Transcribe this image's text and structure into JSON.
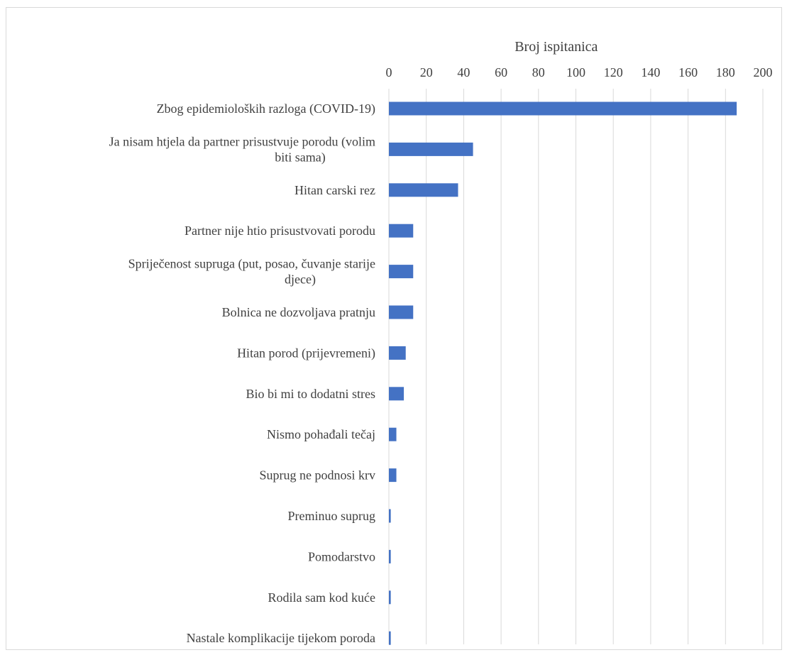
{
  "chart_data": {
    "type": "bar",
    "orientation": "horizontal",
    "title": "",
    "xlabel": "Broj ispitanica",
    "ylabel": "",
    "xlim": [
      0,
      200
    ],
    "xticks": [
      0,
      20,
      40,
      60,
      80,
      100,
      120,
      140,
      160,
      180,
      200
    ],
    "x_axis_position": "top",
    "grid": "vertical",
    "legend": "none",
    "bar_color": "#4472c4",
    "grid_color": "#d9d9d9",
    "categories": [
      [
        "Zbog epidemioloških razloga (COVID-19)"
      ],
      [
        "Ja nisam htjela da partner prisustvuje porodu (volim",
        "biti sama)"
      ],
      [
        "Hitan carski rez"
      ],
      [
        "Partner nije htio prisustvovati porodu"
      ],
      [
        "Spriječenost supruga (put, posao, čuvanje starije",
        "djece)"
      ],
      [
        "Bolnica ne dozvoljava pratnju"
      ],
      [
        "Hitan porod (prijevremeni)"
      ],
      [
        "Bio bi mi to dodatni stres"
      ],
      [
        "Nismo pohađali tečaj"
      ],
      [
        "Suprug ne podnosi krv"
      ],
      [
        "Preminuo suprug"
      ],
      [
        "Pomodarstvo"
      ],
      [
        "Rodila sam kod kuće"
      ],
      [
        "Nastale komplikacije tijekom poroda"
      ]
    ],
    "values": [
      186,
      45,
      37,
      13,
      13,
      13,
      9,
      8,
      4,
      4,
      1,
      1,
      1,
      1
    ]
  }
}
